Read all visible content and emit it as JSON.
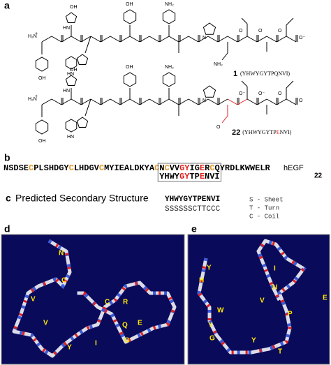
{
  "panels": {
    "a": "a",
    "b": "b",
    "c": "c",
    "d": "d",
    "e": "e"
  },
  "structure_1": {
    "atoms": [
      "H₂N",
      "+",
      "OH",
      "OH",
      "OH",
      "NH₂",
      "NH₂",
      "O",
      "O",
      "O⁻",
      "O",
      "HN",
      "HN",
      "N"
    ],
    "number": "1",
    "sequence": "(YHWYGYTPQNVI)"
  },
  "structure_22": {
    "atoms": [
      "H₂N",
      "+",
      "OH",
      "OH",
      "OH",
      "NH₂",
      "O",
      "O",
      "O⁻",
      "O",
      "O⁻",
      "HN",
      "HN",
      "N"
    ],
    "number": "22",
    "seq_pre": "(YHWYGYTP",
    "seq_mut": "E",
    "seq_post": "NVI)"
  },
  "alignment": {
    "hegf": [
      {
        "text": "NSDSE"
      },
      {
        "text": "C",
        "color": "#e8961e"
      },
      {
        "text": "PLSHDGY"
      },
      {
        "text": "C",
        "color": "#e8961e"
      },
      {
        "text": "LHDGV"
      },
      {
        "text": "C",
        "color": "#e8961e"
      },
      {
        "text": "MYIEALDKYA"
      },
      {
        "text": "C",
        "color": "#e8961e"
      },
      {
        "text": "N"
      },
      {
        "text": "C",
        "color": "#e8961e"
      },
      {
        "text": "VV"
      },
      {
        "text": "GY",
        "color": "#e0201c"
      },
      {
        "text": "IG"
      },
      {
        "text": "E",
        "color": "#e0201c"
      },
      {
        "text": "R"
      },
      {
        "text": "C",
        "color": "#e8961e"
      },
      {
        "text": "QYRDLKWWELR"
      }
    ],
    "peptide": [
      {
        "text": "YHWY"
      },
      {
        "text": "GY",
        "color": "#e0201c"
      },
      {
        "text": "TP"
      },
      {
        "text": "E",
        "color": "#e0201c"
      },
      {
        "text": "NVI"
      }
    ],
    "hegf_label": "hEGF",
    "peptide_label": "22"
  },
  "secondary": {
    "title": "Predicted Secondary Structure",
    "sequence": "YHWYGYTPENVI",
    "structure": "SSSSSSCTTCCC",
    "legend": [
      "S - Sheet",
      "T - Turn",
      "C - Coil"
    ]
  },
  "model_d": {
    "residues": [
      "N",
      "C",
      "V",
      "R",
      "V",
      "C",
      "E",
      "Q",
      "G",
      "Y",
      "I"
    ]
  },
  "model_e": {
    "residues": [
      "Y",
      "I",
      "H",
      "N",
      "V",
      "E",
      "W",
      "Y",
      "P",
      "G",
      "Y",
      "T"
    ]
  }
}
